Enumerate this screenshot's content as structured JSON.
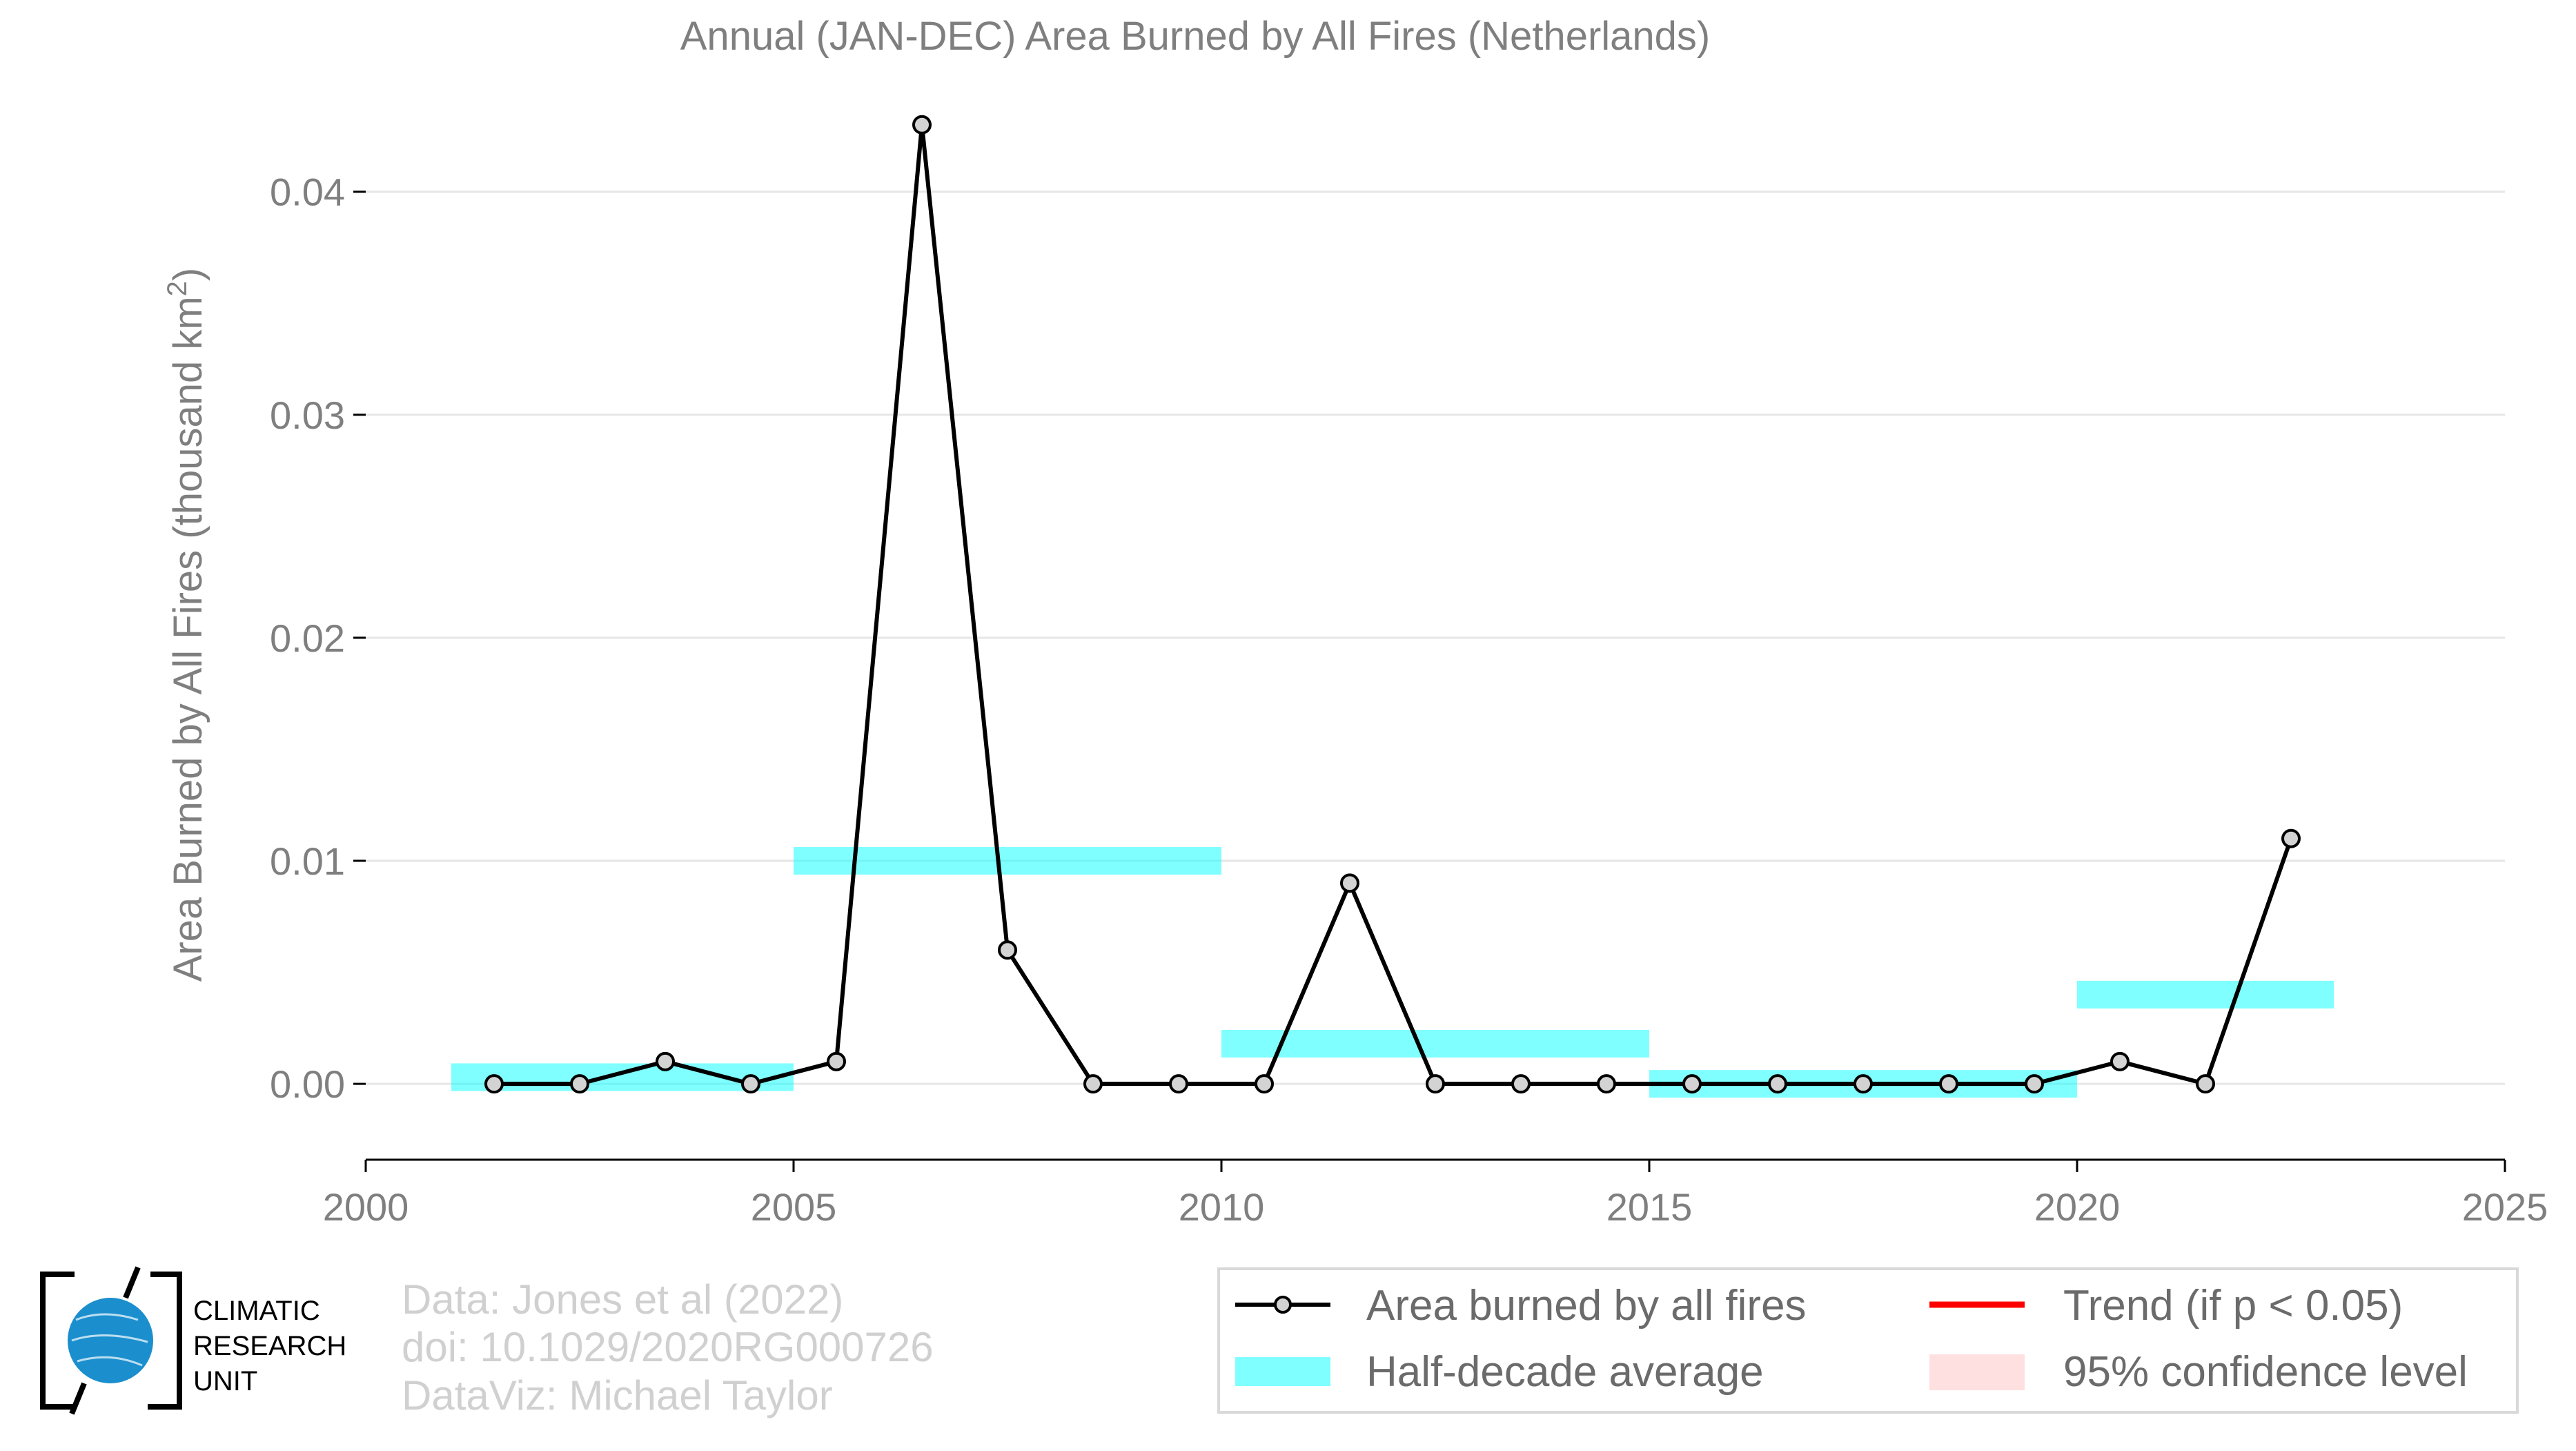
{
  "chart_data": {
    "type": "line",
    "title": "Annual (JAN-DEC) Area Burned by All Fires (Netherlands)",
    "ylabel": "Area Burned by All Fires (thousand km",
    "ylabel_sup": "2",
    "ylabel_end": ")",
    "xlim": [
      2000,
      2025
    ],
    "ylim": [
      -0.0034,
      0.0455
    ],
    "x_ticks": [
      2000,
      2005,
      2010,
      2015,
      2020,
      2025
    ],
    "x_tick_labels": [
      "2000",
      "2005",
      "2010",
      "2015",
      "2020",
      "2025"
    ],
    "y_ticks": [
      0,
      0.01,
      0.02,
      0.03,
      0.04
    ],
    "y_tick_labels": [
      "0.00",
      "0.01",
      "0.02",
      "0.03",
      "0.04"
    ],
    "grid": true,
    "series": [
      {
        "name": "Area burned by all fires",
        "color": "#000000",
        "marker_fill": "#d3d3d3",
        "x": [
          2001.5,
          2002.5,
          2003.5,
          2004.5,
          2005.5,
          2006.5,
          2007.5,
          2008.5,
          2009.5,
          2010.5,
          2011.5,
          2012.5,
          2013.5,
          2014.5,
          2015.5,
          2016.5,
          2017.5,
          2018.5,
          2019.5,
          2020.5,
          2021.5,
          2022.5
        ],
        "y": [
          0,
          0,
          0.001,
          0,
          0.001,
          0.043,
          0.006,
          0,
          0,
          0,
          0.009,
          0,
          0,
          0,
          0,
          0,
          0,
          0,
          0,
          0.001,
          0,
          0.011
        ]
      }
    ],
    "half_decade_average": {
      "name": "Half-decade average",
      "color": "#00ffff",
      "segments": [
        {
          "x_start": 2001,
          "x_end": 2005,
          "y": 0.0003
        },
        {
          "x_start": 2005,
          "x_end": 2010,
          "y": 0.01
        },
        {
          "x_start": 2010,
          "x_end": 2015,
          "y": 0.0018
        },
        {
          "x_start": 2015,
          "x_end": 2020,
          "y": 0
        },
        {
          "x_start": 2020,
          "x_end": 2023,
          "y": 0.004
        }
      ]
    },
    "legend": {
      "placement": "bottom-right",
      "entries": [
        {
          "label": "Area burned by all fires",
          "kind": "line-marker",
          "color": "#000000"
        },
        {
          "label": "Trend (if p < 0.05)",
          "kind": "line",
          "color": "#ff0000"
        },
        {
          "label": "Half-decade average",
          "kind": "band",
          "color": "#00ffff"
        },
        {
          "label": "95% confidence level",
          "kind": "band",
          "color": "#ffcccc"
        }
      ]
    }
  },
  "credits": {
    "data": "Data: Jones et al (2022)",
    "doi": "doi: 10.1029/2020RG000726",
    "dataviz": "DataViz: Michael Taylor"
  },
  "logo": {
    "line1": "CLIMATIC",
    "line2": "RESEARCH",
    "line3": "UNIT",
    "globe_color": "#1b8fce"
  }
}
